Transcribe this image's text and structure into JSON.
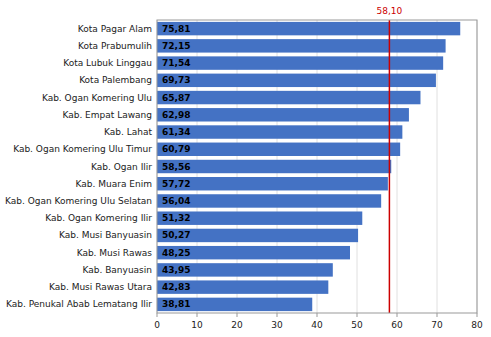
{
  "chart_data": {
    "type": "bar",
    "orientation": "horizontal",
    "categories": [
      "Kota Pagar Alam",
      "Kota Prabumulih",
      "Kota Lubuk Linggau",
      "Kota Palembang",
      "Kab. Ogan Komering Ulu",
      "Kab. Empat Lawang",
      "Kab. Lahat",
      "Kab. Ogan Komering Ulu Timur",
      "Kab. Ogan Ilir",
      "Kab. Muara Enim",
      "Kab. Ogan Komering Ulu Selatan",
      "Kab. Ogan Komering Ilir",
      "Kab. Musi Banyuasin",
      "Kab. Musi Rawas",
      "Kab. Banyuasin",
      "Kab. Musi Rawas Utara",
      "Kab. Penukal Abab Lematang Ilir"
    ],
    "values": [
      75.81,
      72.15,
      71.54,
      69.73,
      65.87,
      62.98,
      61.34,
      60.79,
      58.56,
      57.72,
      56.04,
      51.32,
      50.27,
      48.25,
      43.95,
      42.83,
      38.81
    ],
    "value_labels": [
      "75,81",
      "72,15",
      "71,54",
      "69,73",
      "65,87",
      "62,98",
      "61,34",
      "60,79",
      "58,56",
      "57,72",
      "56,04",
      "51,32",
      "50,27",
      "48,25",
      "43,95",
      "42,83",
      "38,81"
    ],
    "data_labels": true,
    "color": "#4472C4",
    "xlim": [
      0,
      80
    ],
    "xticks": [
      0,
      10,
      20,
      30,
      40,
      50,
      60,
      70,
      80
    ],
    "grid": true,
    "ref_line": {
      "value": 58.1,
      "label": "58,10",
      "color": "#CC0000"
    }
  }
}
